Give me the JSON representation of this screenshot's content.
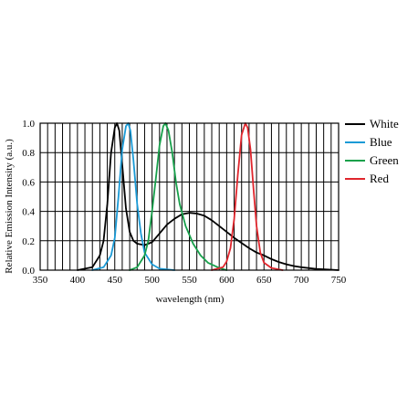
{
  "chart_data": {
    "type": "line",
    "title": "",
    "xlabel": "wavelength (nm)",
    "ylabel": "Relative Emission Intensity (a.u.)",
    "xlim": [
      350,
      750
    ],
    "ylim": [
      0.0,
      1.0
    ],
    "x_ticks": [
      350,
      400,
      450,
      500,
      550,
      600,
      650,
      700,
      750
    ],
    "x_tick_labels": [
      "350",
      "400",
      "450",
      "500",
      "550",
      "600",
      "650",
      "700",
      "750"
    ],
    "y_ticks": [
      0.0,
      0.2,
      0.4,
      0.6,
      0.8,
      1.0
    ],
    "y_tick_labels": [
      "0.0",
      "0.2",
      "0.4",
      "0.6",
      "0.8",
      "1.0"
    ],
    "x_grid_step": 10,
    "grid": true,
    "legend_position": "right",
    "series": [
      {
        "name": "White",
        "color": "#000000",
        "points": [
          [
            400,
            0.0
          ],
          [
            420,
            0.02
          ],
          [
            430,
            0.1
          ],
          [
            435,
            0.2
          ],
          [
            440,
            0.45
          ],
          [
            445,
            0.8
          ],
          [
            450,
            0.97
          ],
          [
            453,
            1.0
          ],
          [
            456,
            0.95
          ],
          [
            460,
            0.72
          ],
          [
            465,
            0.42
          ],
          [
            470,
            0.26
          ],
          [
            475,
            0.2
          ],
          [
            480,
            0.18
          ],
          [
            490,
            0.17
          ],
          [
            500,
            0.19
          ],
          [
            510,
            0.25
          ],
          [
            520,
            0.31
          ],
          [
            530,
            0.35
          ],
          [
            540,
            0.38
          ],
          [
            550,
            0.39
          ],
          [
            560,
            0.385
          ],
          [
            570,
            0.37
          ],
          [
            580,
            0.34
          ],
          [
            590,
            0.3
          ],
          [
            600,
            0.26
          ],
          [
            610,
            0.22
          ],
          [
            620,
            0.185
          ],
          [
            630,
            0.15
          ],
          [
            640,
            0.12
          ],
          [
            650,
            0.1
          ],
          [
            660,
            0.075
          ],
          [
            670,
            0.055
          ],
          [
            680,
            0.04
          ],
          [
            690,
            0.028
          ],
          [
            700,
            0.02
          ],
          [
            720,
            0.008
          ],
          [
            740,
            0.003
          ],
          [
            750,
            0.0
          ]
        ]
      },
      {
        "name": "Blue",
        "color": "#1a9ad6",
        "points": [
          [
            420,
            0.0
          ],
          [
            435,
            0.02
          ],
          [
            445,
            0.1
          ],
          [
            450,
            0.22
          ],
          [
            455,
            0.5
          ],
          [
            460,
            0.82
          ],
          [
            465,
            0.98
          ],
          [
            468,
            1.0
          ],
          [
            471,
            0.95
          ],
          [
            475,
            0.75
          ],
          [
            480,
            0.45
          ],
          [
            485,
            0.25
          ],
          [
            490,
            0.12
          ],
          [
            500,
            0.04
          ],
          [
            510,
            0.01
          ],
          [
            530,
            0.0
          ]
        ]
      },
      {
        "name": "Green",
        "color": "#17a04b",
        "points": [
          [
            470,
            0.0
          ],
          [
            480,
            0.02
          ],
          [
            490,
            0.1
          ],
          [
            495,
            0.2
          ],
          [
            500,
            0.4
          ],
          [
            505,
            0.62
          ],
          [
            510,
            0.85
          ],
          [
            515,
            0.98
          ],
          [
            518,
            1.0
          ],
          [
            522,
            0.95
          ],
          [
            527,
            0.8
          ],
          [
            532,
            0.6
          ],
          [
            537,
            0.45
          ],
          [
            545,
            0.3
          ],
          [
            555,
            0.18
          ],
          [
            565,
            0.1
          ],
          [
            575,
            0.05
          ],
          [
            590,
            0.015
          ],
          [
            600,
            0.0
          ]
        ]
      },
      {
        "name": "Red",
        "color": "#e0262d",
        "points": [
          [
            580,
            0.0
          ],
          [
            595,
            0.02
          ],
          [
            600,
            0.06
          ],
          [
            605,
            0.15
          ],
          [
            610,
            0.35
          ],
          [
            615,
            0.65
          ],
          [
            620,
            0.92
          ],
          [
            625,
            1.0
          ],
          [
            628,
            0.97
          ],
          [
            632,
            0.82
          ],
          [
            636,
            0.55
          ],
          [
            640,
            0.3
          ],
          [
            645,
            0.12
          ],
          [
            650,
            0.05
          ],
          [
            660,
            0.015
          ],
          [
            675,
            0.0
          ]
        ]
      }
    ]
  }
}
